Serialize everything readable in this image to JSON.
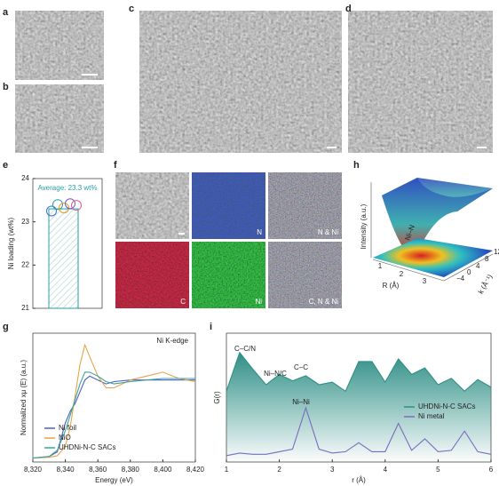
{
  "panels": {
    "a": {
      "label": "a"
    },
    "b": {
      "label": "b"
    },
    "c": {
      "label": "c"
    },
    "d": {
      "label": "d"
    },
    "f": {
      "label": "f",
      "tiles": [
        "N",
        "N & Ni",
        "C",
        "Ni",
        "C, N & Ni"
      ]
    },
    "h": {
      "label": "h",
      "z_label": "Intensity (a.u.)",
      "x_label": "R (Å)",
      "y_label": "k (Å⁻¹)",
      "annotation": "Ni–N",
      "xticks": [
        1,
        2,
        3
      ],
      "yticks": [
        12,
        8,
        4,
        0,
        {
          "value": -4,
          "label": "−4"
        }
      ]
    }
  },
  "chart_data": [
    {
      "type": "bar",
      "panel": "e",
      "ylabel": "Ni loading (wt%)",
      "annotation": "Average: 23.3 wt%",
      "categories": [
        null
      ],
      "values": [
        23.3
      ],
      "color": "#2a9da6",
      "points": [
        23.25,
        23.4,
        23.32,
        23.42,
        23.38
      ],
      "point_colors": [
        "#3a6fd0",
        "#2a9da6",
        "#e0a030",
        "#6a5acd",
        "#e05a8a"
      ],
      "ylim": [
        21,
        24
      ],
      "yticks": [
        21,
        22,
        23,
        24
      ]
    },
    {
      "type": "line",
      "panel": "g",
      "title": "Ni K-edge",
      "xlabel": "Energy (eV)",
      "ylabel": "Normalized xμ (E) (a.u.)",
      "x": [
        8320,
        8330,
        8335,
        8340,
        8343,
        8346,
        8349,
        8352,
        8355,
        8360,
        8365,
        8370,
        8380,
        8390,
        8400,
        8410,
        8420
      ],
      "series": [
        {
          "name": "Ni foil",
          "color": "#4a5fc8",
          "values": [
            0,
            0.02,
            0.08,
            0.45,
            0.6,
            0.7,
            0.85,
            1.0,
            1.05,
            1.0,
            0.95,
            0.98,
            1.0,
            1.0,
            1.0,
            1.0,
            1.0
          ]
        },
        {
          "name": "NiO",
          "color": "#e8a24a",
          "values": [
            0,
            0.01,
            0.03,
            0.15,
            0.4,
            0.8,
            1.2,
            1.45,
            1.3,
            1.05,
            0.9,
            0.9,
            1.0,
            1.05,
            1.1,
            1.02,
            0.98
          ]
        },
        {
          "name": "UHDNi-N-C SACs",
          "color": "#3aa59a",
          "values": [
            0,
            0.02,
            0.1,
            0.35,
            0.55,
            0.75,
            0.95,
            1.1,
            1.1,
            1.05,
            0.98,
            0.95,
            0.98,
            1.0,
            1.02,
            1.02,
            1.02
          ]
        }
      ],
      "xlim": [
        8320,
        8420
      ],
      "xticks": [
        {
          "value": 8320,
          "label": "8,320"
        },
        {
          "value": 8340,
          "label": "8,340"
        },
        {
          "value": 8360,
          "label": "8,360"
        },
        {
          "value": 8380,
          "label": "8,380"
        },
        {
          "value": 8400,
          "label": "8,400"
        },
        {
          "value": 8420,
          "label": "8,420"
        }
      ],
      "ylim": [
        -0.05,
        1.6
      ]
    },
    {
      "type": "line",
      "panel": "i",
      "xlabel": "r (Å)",
      "ylabel": "G(r)",
      "annotations": [
        "C–C/N",
        "Ni–N/C",
        "C–C",
        "Ni–Ni"
      ],
      "x": [
        1,
        1.25,
        1.5,
        1.75,
        2,
        2.25,
        2.5,
        2.75,
        3,
        3.25,
        3.5,
        3.75,
        4,
        4.25,
        4.5,
        4.75,
        5,
        5.25,
        5.5,
        5.75,
        6
      ],
      "series": [
        {
          "name": "UHDNi-N-C SACs",
          "color": "#2f8f86",
          "fill": true,
          "values": [
            0.55,
            0.85,
            0.72,
            0.6,
            0.68,
            0.63,
            0.67,
            0.6,
            0.62,
            0.55,
            0.78,
            0.78,
            0.62,
            0.8,
            0.68,
            0.73,
            0.6,
            0.65,
            0.55,
            0.64,
            0.58
          ]
        },
        {
          "name": "Ni metal",
          "color": "#7a6cc0",
          "fill": false,
          "values": [
            0.05,
            0.07,
            0.06,
            0.06,
            0.08,
            0.1,
            0.42,
            0.1,
            0.07,
            0.08,
            0.15,
            0.08,
            0.08,
            0.3,
            0.09,
            0.18,
            0.08,
            0.09,
            0.24,
            0.08,
            0.06
          ]
        }
      ],
      "xlim": [
        1,
        6
      ],
      "xticks": [
        1,
        2,
        3,
        4,
        5,
        6
      ],
      "ylim": [
        0,
        1
      ]
    }
  ]
}
